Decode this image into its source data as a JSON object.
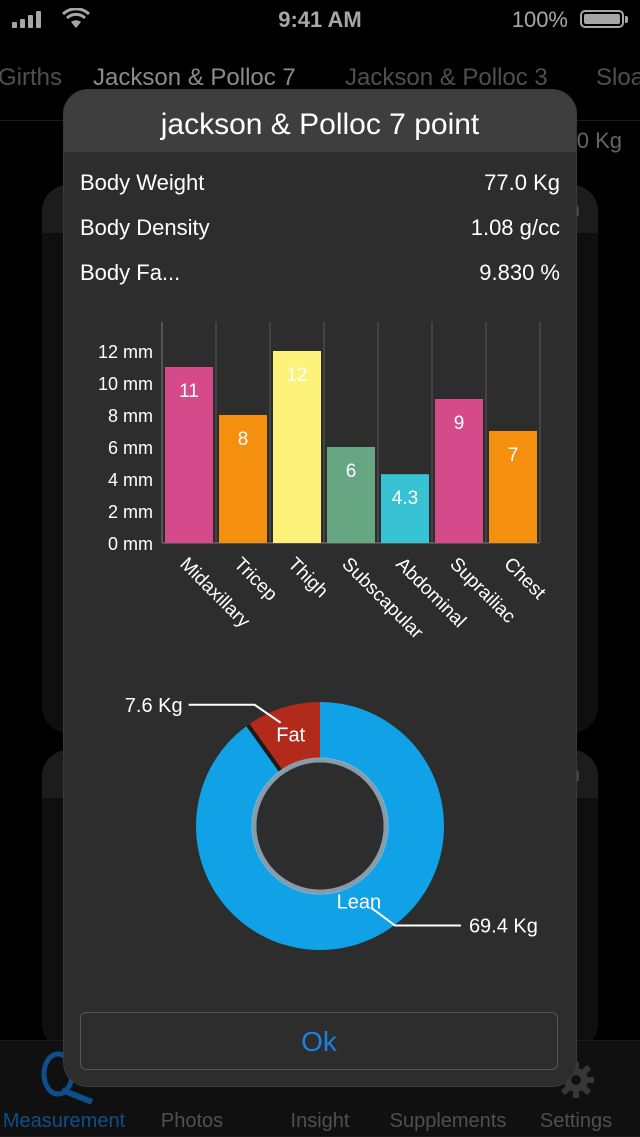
{
  "status": {
    "time": "9:41 AM",
    "battery": "100%"
  },
  "segments": [
    "Girths",
    "Jackson & Polloc 7",
    "Jackson & Polloc 3",
    "Sloa"
  ],
  "background_value": "0 Kg",
  "background_cards": [
    {
      "hdr_right": "n"
    },
    {
      "hdr_right": "n"
    }
  ],
  "tabbar": {
    "tabs": [
      {
        "label": "Measurement",
        "icon": "tape-measure-icon",
        "active": true
      },
      {
        "label": "Photos",
        "icon": "camera-icon",
        "active": false
      },
      {
        "label": "Insight",
        "icon": "lightbulb-icon",
        "active": false
      },
      {
        "label": "Supplements",
        "icon": "supplements-icon",
        "active": false
      },
      {
        "label": "Settings",
        "icon": "gear-icon",
        "active": false
      }
    ]
  },
  "modal": {
    "title": "jackson & Polloc 7 point",
    "rows": [
      {
        "label": "Body Weight",
        "value": "77.0 Kg"
      },
      {
        "label": "Body Density",
        "value": "1.08 g/cc"
      },
      {
        "label": "Body Fa...",
        "value": "9.830 %"
      }
    ],
    "ok_label": "Ok"
  },
  "chart_data": [
    {
      "type": "bar",
      "categories": [
        "Midaxillary",
        "Tricep",
        "Thigh",
        "Subscapular",
        "Abdominal",
        "Suprailiac",
        "Chest"
      ],
      "values": [
        11,
        8,
        12,
        6,
        4.3,
        9,
        7
      ],
      "data_labels": [
        "11",
        "8",
        "12",
        "6",
        "4.3",
        "9",
        "7"
      ],
      "colors": [
        "#d54a8a",
        "#f5900f",
        "#fdf27a",
        "#66a682",
        "#37c3d4",
        "#d54a8a",
        "#f5900f"
      ],
      "yticks": [
        "0 mm",
        "2 mm",
        "4 mm",
        "6 mm",
        "8 mm",
        "10 mm",
        "12 mm"
      ],
      "ylim": [
        0,
        12
      ],
      "grid": "vertical"
    },
    {
      "type": "pie",
      "categories": [
        "Fat",
        "Lean"
      ],
      "values": [
        7.6,
        69.4
      ],
      "value_labels": [
        "7.6 Kg",
        "69.4 Kg"
      ],
      "colors": [
        "#b12a1c",
        "#11a1e6"
      ]
    }
  ]
}
